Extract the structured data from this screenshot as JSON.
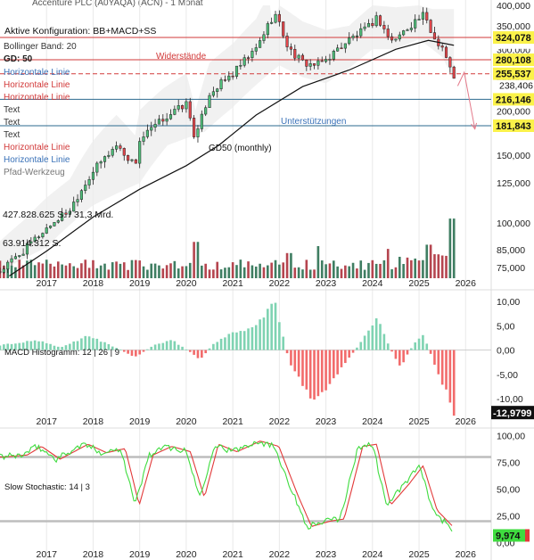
{
  "header": {
    "title": "Accenture PLC (A0YAQA) (ACN) - 1 Monat",
    "config": "Aktive Konfiguration: BB+MACD+SS"
  },
  "overlays": [
    {
      "label": "Bollinger Band: 20",
      "color": "#333333"
    },
    {
      "label": "GD: 50",
      "color": "#222222"
    },
    {
      "label": "Horizontale Linie",
      "color": "#3a72b8"
    },
    {
      "label": "Horizontale Linie",
      "color": "#d23a3a"
    },
    {
      "label": "Horizontale Linie",
      "color": "#d23a3a"
    },
    {
      "label": "Text",
      "color": "#333333"
    },
    {
      "label": "Text",
      "color": "#333333"
    },
    {
      "label": "Text",
      "color": "#333333"
    },
    {
      "label": "Horizontale Linie",
      "color": "#d23a3a"
    },
    {
      "label": "Horizontale Linie",
      "color": "#3a72b8"
    },
    {
      "label": "Pfad-Werkzeug",
      "color": "#777777"
    }
  ],
  "annotations": {
    "resistance": "Widerstände",
    "support": "Unterstützungen",
    "gd_label": "GD50 (monthly)"
  },
  "colors": {
    "up": "#4fbf7a",
    "down": "#e6464b",
    "volume_up": "#3f7e62",
    "volume_down": "#b5454f",
    "macd_pos": "#7fd3b2",
    "macd_neg": "#f26b6b",
    "stoch_k": "#3fdc3f",
    "stoch_d": "#e23a3a",
    "resistance_line": "#d23a3a",
    "support_line": "#2b6a8f",
    "price_badge": "#fbf24a"
  },
  "chart_data": {
    "type": "candlestick",
    "x_ticks": [
      "2017",
      "2018",
      "2019",
      "2020",
      "2021",
      "2022",
      "2023",
      "2024",
      "2025",
      "2026"
    ],
    "price": {
      "y_ticks": [
        "400,000",
        "350,000",
        "300,000",
        "250,000",
        "200,000",
        "150,000",
        "125,000",
        "100,000",
        "85,000",
        "75,000"
      ],
      "y_tick_values": [
        400,
        350,
        300,
        250,
        200,
        150,
        125,
        100,
        85,
        75
      ],
      "scale": "log",
      "ylim": [
        67,
        400
      ],
      "levels": [
        {
          "value": 324.078,
          "label": "324,078",
          "style": "solid",
          "kind": "resistance"
        },
        {
          "value": 280.108,
          "label": "280,108",
          "style": "solid",
          "kind": "resistance"
        },
        {
          "value": 255.537,
          "label": "255,537",
          "style": "dashed",
          "kind": "resistance"
        },
        {
          "value": 216.146,
          "label": "216,146",
          "style": "solid",
          "kind": "support"
        },
        {
          "value": 181.843,
          "label": "181,843",
          "style": "solid",
          "kind": "support"
        }
      ],
      "last_price": {
        "value": 238.406,
        "label": "238,406"
      },
      "gd50_end": 308,
      "gd50": [
        {
          "x": 2016.2,
          "y": 68
        },
        {
          "x": 2017.0,
          "y": 80
        },
        {
          "x": 2018.0,
          "y": 100
        },
        {
          "x": 2019.0,
          "y": 120
        },
        {
          "x": 2020.0,
          "y": 140
        },
        {
          "x": 2020.7,
          "y": 160
        },
        {
          "x": 2021.5,
          "y": 195
        },
        {
          "x": 2022.5,
          "y": 235
        },
        {
          "x": 2023.5,
          "y": 262
        },
        {
          "x": 2024.5,
          "y": 300
        },
        {
          "x": 2025.2,
          "y": 318
        },
        {
          "x": 2025.75,
          "y": 308
        }
      ],
      "band_upper": [
        {
          "x": 2021.8,
          "y": 330
        },
        {
          "x": 2022.0,
          "y": 400
        },
        {
          "x": 2022.5,
          "y": 360
        },
        {
          "x": 2023.0,
          "y": 340
        },
        {
          "x": 2023.5,
          "y": 350
        },
        {
          "x": 2024.0,
          "y": 400
        },
        {
          "x": 2024.5,
          "y": 395
        },
        {
          "x": 2025.0,
          "y": 400
        },
        {
          "x": 2025.3,
          "y": 390
        }
      ],
      "band_lower": [
        {
          "x": 2016.0,
          "y": 70
        },
        {
          "x": 2017.0,
          "y": 82
        },
        {
          "x": 2018.0,
          "y": 108
        },
        {
          "x": 2019.0,
          "y": 125
        },
        {
          "x": 2019.6,
          "y": 160
        },
        {
          "x": 2020.4,
          "y": 175
        },
        {
          "x": 2021.0,
          "y": 205
        },
        {
          "x": 2022.0,
          "y": 270
        },
        {
          "x": 2022.5,
          "y": 250
        },
        {
          "x": 2023.0,
          "y": 240
        },
        {
          "x": 2023.5,
          "y": 265
        },
        {
          "x": 2024.0,
          "y": 300
        },
        {
          "x": 2024.5,
          "y": 300
        },
        {
          "x": 2025.0,
          "y": 320
        },
        {
          "x": 2025.5,
          "y": 285
        },
        {
          "x": 2025.8,
          "y": 235
        }
      ],
      "projection": [
        {
          "x": 2025.83,
          "y": 236
        },
        {
          "x": 2025.97,
          "y": 258
        },
        {
          "x": 2026.2,
          "y": 178
        }
      ],
      "keypoints": [
        {
          "x": 2016.0,
          "y": 70
        },
        {
          "x": 2016.5,
          "y": 80
        },
        {
          "x": 2017.0,
          "y": 93
        },
        {
          "x": 2017.5,
          "y": 105
        },
        {
          "x": 2018.0,
          "y": 135
        },
        {
          "x": 2018.5,
          "y": 160
        },
        {
          "x": 2018.9,
          "y": 140
        },
        {
          "x": 2019.0,
          "y": 165
        },
        {
          "x": 2019.5,
          "y": 190
        },
        {
          "x": 2020.0,
          "y": 210
        },
        {
          "x": 2020.2,
          "y": 165
        },
        {
          "x": 2020.5,
          "y": 225
        },
        {
          "x": 2021.0,
          "y": 255
        },
        {
          "x": 2021.5,
          "y": 300
        },
        {
          "x": 2021.9,
          "y": 380
        },
        {
          "x": 2022.2,
          "y": 300
        },
        {
          "x": 2022.5,
          "y": 275
        },
        {
          "x": 2022.8,
          "y": 270
        },
        {
          "x": 2023.0,
          "y": 280
        },
        {
          "x": 2023.5,
          "y": 320
        },
        {
          "x": 2023.9,
          "y": 345
        },
        {
          "x": 2024.1,
          "y": 370
        },
        {
          "x": 2024.4,
          "y": 315
        },
        {
          "x": 2024.6,
          "y": 330
        },
        {
          "x": 2024.9,
          "y": 360
        },
        {
          "x": 2025.1,
          "y": 375
        },
        {
          "x": 2025.3,
          "y": 325
        },
        {
          "x": 2025.5,
          "y": 305
        },
        {
          "x": 2025.75,
          "y": 245
        }
      ]
    },
    "volume": {
      "label_top": "427.828.625 S. / 31,3 Mrd.",
      "label_mid": "63.914.312 S.",
      "max": 427.8,
      "spikes": [
        {
          "x": 2020.2,
          "v": 260
        },
        {
          "x": 2022.2,
          "v": 180
        },
        {
          "x": 2022.8,
          "v": 230
        },
        {
          "x": 2024.3,
          "v": 210
        },
        {
          "x": 2025.2,
          "v": 240
        },
        {
          "x": 2025.7,
          "v": 427
        }
      ]
    },
    "macd": {
      "label": "MACD Histogramm: 12 | 26 | 9",
      "y_ticks": [
        "10,00",
        "5,00",
        "0,00",
        "-5,00",
        "-10,00"
      ],
      "y_tick_values": [
        10,
        5,
        0,
        -5,
        -10
      ],
      "ylim": [
        -13.5,
        11.5
      ],
      "last": {
        "value": -12.9799,
        "label": "-12,9799"
      },
      "keypoints": [
        {
          "x": 2016.0,
          "y": 1.0
        },
        {
          "x": 2016.8,
          "y": 2.0
        },
        {
          "x": 2017.3,
          "y": 0.5
        },
        {
          "x": 2017.9,
          "y": 3.0
        },
        {
          "x": 2018.6,
          "y": 0.0
        },
        {
          "x": 2018.9,
          "y": -1.5
        },
        {
          "x": 2019.3,
          "y": 1.0
        },
        {
          "x": 2019.7,
          "y": 2.0
        },
        {
          "x": 2020.1,
          "y": -0.5
        },
        {
          "x": 2020.3,
          "y": -2.0
        },
        {
          "x": 2020.6,
          "y": 1.5
        },
        {
          "x": 2021.0,
          "y": 3.5
        },
        {
          "x": 2021.5,
          "y": 5.0
        },
        {
          "x": 2021.9,
          "y": 10.0
        },
        {
          "x": 2022.2,
          "y": -2.0
        },
        {
          "x": 2022.7,
          "y": -11.0
        },
        {
          "x": 2023.0,
          "y": -8.0
        },
        {
          "x": 2023.4,
          "y": -3.0
        },
        {
          "x": 2023.7,
          "y": 1.0
        },
        {
          "x": 2024.1,
          "y": 6.5
        },
        {
          "x": 2024.4,
          "y": 0.0
        },
        {
          "x": 2024.6,
          "y": -3.5
        },
        {
          "x": 2024.9,
          "y": 1.5
        },
        {
          "x": 2025.1,
          "y": 3.0
        },
        {
          "x": 2025.3,
          "y": -2.0
        },
        {
          "x": 2025.75,
          "y": -13.0
        }
      ]
    },
    "stochastic": {
      "label": "Slow Stochastic: 14 | 3",
      "y_ticks": [
        "100,00",
        "75,00",
        "50,00",
        "25,00",
        "0,00"
      ],
      "y_tick_values": [
        100,
        75,
        50,
        25,
        0
      ],
      "ylim": [
        -3,
        103
      ],
      "bands": [
        80,
        20
      ],
      "last": {
        "value": 9.974,
        "label": "9,974"
      },
      "keypoints": [
        {
          "x": 2016.0,
          "y": 80
        },
        {
          "x": 2016.5,
          "y": 82
        },
        {
          "x": 2016.8,
          "y": 90
        },
        {
          "x": 2017.2,
          "y": 78
        },
        {
          "x": 2017.8,
          "y": 92
        },
        {
          "x": 2018.2,
          "y": 84
        },
        {
          "x": 2018.6,
          "y": 88
        },
        {
          "x": 2018.9,
          "y": 35
        },
        {
          "x": 2019.2,
          "y": 82
        },
        {
          "x": 2019.6,
          "y": 90
        },
        {
          "x": 2020.0,
          "y": 85
        },
        {
          "x": 2020.3,
          "y": 42
        },
        {
          "x": 2020.6,
          "y": 92
        },
        {
          "x": 2021.0,
          "y": 85
        },
        {
          "x": 2021.5,
          "y": 95
        },
        {
          "x": 2021.9,
          "y": 90
        },
        {
          "x": 2022.3,
          "y": 45
        },
        {
          "x": 2022.6,
          "y": 15
        },
        {
          "x": 2023.0,
          "y": 20
        },
        {
          "x": 2023.3,
          "y": 22
        },
        {
          "x": 2023.7,
          "y": 90
        },
        {
          "x": 2024.0,
          "y": 92
        },
        {
          "x": 2024.3,
          "y": 35
        },
        {
          "x": 2024.7,
          "y": 55
        },
        {
          "x": 2025.0,
          "y": 72
        },
        {
          "x": 2025.3,
          "y": 30
        },
        {
          "x": 2025.75,
          "y": 10
        }
      ]
    }
  }
}
